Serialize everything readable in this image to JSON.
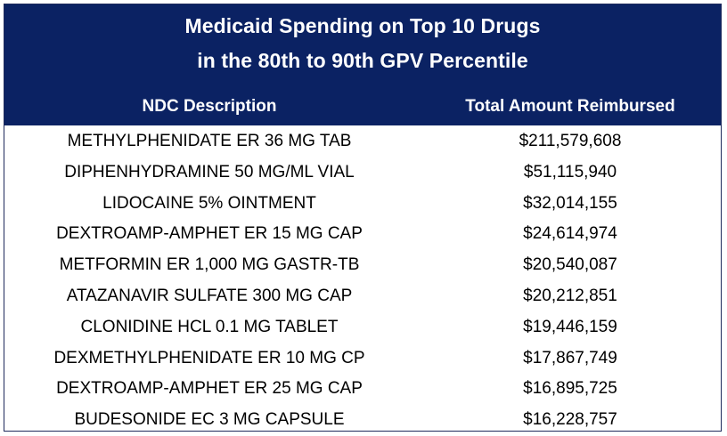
{
  "chart_data": {
    "type": "table",
    "title": "Medicaid Spending on Top 10 Drugs",
    "subtitle": "in the 80th to 90th GPV Percentile",
    "columns": [
      "NDC Description",
      "Total Amount Reimbursed"
    ],
    "rows": [
      {
        "drug": "METHYLPHENIDATE ER 36 MG TAB",
        "amount": "$211,579,608",
        "value": 211579608
      },
      {
        "drug": "DIPHENHYDRAMINE 50 MG/ML VIAL",
        "amount": "$51,115,940",
        "value": 51115940
      },
      {
        "drug": "LIDOCAINE 5% OINTMENT",
        "amount": "$32,014,155",
        "value": 32014155
      },
      {
        "drug": "DEXTROAMP-AMPHET ER 15 MG CAP",
        "amount": "$24,614,974",
        "value": 24614974
      },
      {
        "drug": "METFORMIN ER 1,000 MG GASTR-TB",
        "amount": "$20,540,087",
        "value": 20540087
      },
      {
        "drug": "ATAZANAVIR SULFATE 300 MG CAP",
        "amount": "$20,212,851",
        "value": 20212851
      },
      {
        "drug": "CLONIDINE HCL 0.1 MG TABLET",
        "amount": "$19,446,159",
        "value": 19446159
      },
      {
        "drug": "DEXMETHYLPHENIDATE ER 10 MG CP",
        "amount": "$17,867,749",
        "value": 17867749
      },
      {
        "drug": "DEXTROAMP-AMPHET ER 25 MG CAP",
        "amount": "$16,895,725",
        "value": 16895725
      },
      {
        "drug": "BUDESONIDE EC 3 MG CAPSULE",
        "amount": "$16,228,757",
        "value": 16228757
      }
    ]
  },
  "colors": {
    "header_background": "#0b2263",
    "header_text": "#ffffff",
    "body_text": "#000000"
  }
}
